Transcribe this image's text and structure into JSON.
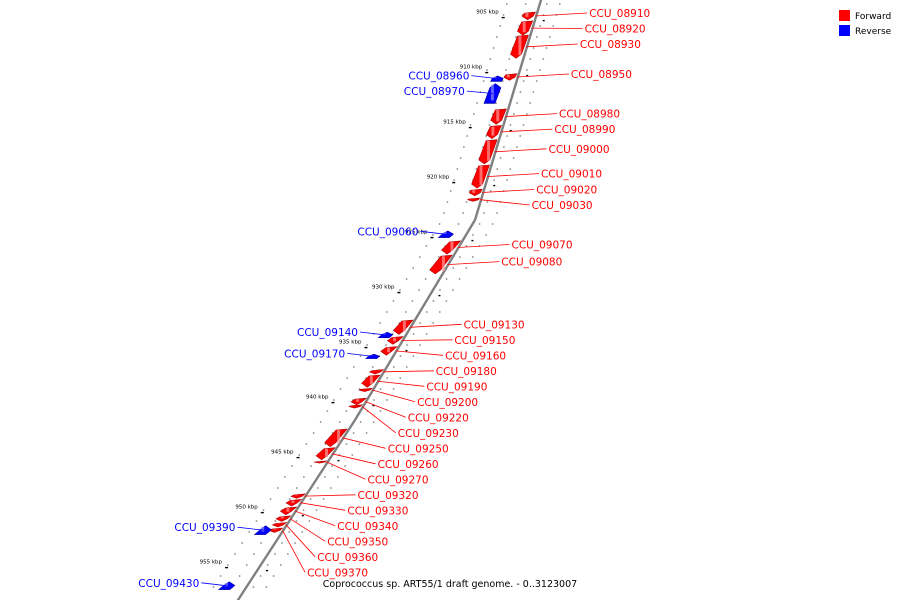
{
  "caption": "Coprococcus sp. ART55/1 draft genome. - 0..3123007",
  "legend": [
    {
      "label": "Forward",
      "color": "#ff0000"
    },
    {
      "label": "Reverse",
      "color": "#0000ff"
    }
  ],
  "colors": {
    "forward": "#ff0000",
    "reverse": "#0000ff",
    "backbone": "#808080"
  },
  "ticks": [
    {
      "label": "905 kbp",
      "kbp": 905
    },
    {
      "label": "910 kbp",
      "kbp": 910
    },
    {
      "label": "915 kbp",
      "kbp": 915
    },
    {
      "label": "920 kbp",
      "kbp": 920
    },
    {
      "label": "925 kbp",
      "kbp": 925
    },
    {
      "label": "930 kbp",
      "kbp": 930
    },
    {
      "label": "935 kbp",
      "kbp": 935
    },
    {
      "label": "940 kbp",
      "kbp": 940
    },
    {
      "label": "945 kbp",
      "kbp": 945
    },
    {
      "label": "950 kbp",
      "kbp": 950
    },
    {
      "label": "955 kbp",
      "kbp": 955
    }
  ],
  "genes": [
    {
      "id": "CCU_08910",
      "strand": "forward",
      "start_kbp": 904.5,
      "end_kbp": 905.2
    },
    {
      "id": "CCU_08920",
      "strand": "forward",
      "start_kbp": 905.3,
      "end_kbp": 906.6
    },
    {
      "id": "CCU_08930",
      "strand": "forward",
      "start_kbp": 906.6,
      "end_kbp": 908.7
    },
    {
      "id": "CCU_08950",
      "strand": "forward",
      "start_kbp": 910.1,
      "end_kbp": 910.7
    },
    {
      "id": "CCU_08960",
      "strand": "reverse",
      "start_kbp": 910.3,
      "end_kbp": 910.8
    },
    {
      "id": "CCU_08970",
      "strand": "reverse",
      "start_kbp": 911.0,
      "end_kbp": 912.8
    },
    {
      "id": "CCU_08980",
      "strand": "forward",
      "start_kbp": 913.3,
      "end_kbp": 914.7
    },
    {
      "id": "CCU_08990",
      "strand": "forward",
      "start_kbp": 914.8,
      "end_kbp": 916.0
    },
    {
      "id": "CCU_09000",
      "strand": "forward",
      "start_kbp": 916.1,
      "end_kbp": 918.3
    },
    {
      "id": "CCU_09010",
      "strand": "forward",
      "start_kbp": 918.4,
      "end_kbp": 920.5
    },
    {
      "id": "CCU_09020",
      "strand": "forward",
      "start_kbp": 920.6,
      "end_kbp": 921.2
    },
    {
      "id": "CCU_09030",
      "strand": "forward",
      "start_kbp": 921.4,
      "end_kbp": 921.7
    },
    {
      "id": "CCU_09060",
      "strand": "reverse",
      "start_kbp": 924.4,
      "end_kbp": 925.0
    },
    {
      "id": "CCU_09070",
      "strand": "forward",
      "start_kbp": 925.3,
      "end_kbp": 926.5
    },
    {
      "id": "CCU_09080",
      "strand": "forward",
      "start_kbp": 926.6,
      "end_kbp": 928.3
    },
    {
      "id": "CCU_09130",
      "strand": "forward",
      "start_kbp": 932.5,
      "end_kbp": 933.8
    },
    {
      "id": "CCU_09140",
      "strand": "reverse",
      "start_kbp": 933.6,
      "end_kbp": 934.1
    },
    {
      "id": "CCU_09150",
      "strand": "forward",
      "start_kbp": 934.0,
      "end_kbp": 934.7
    },
    {
      "id": "CCU_09160",
      "strand": "forward",
      "start_kbp": 934.9,
      "end_kbp": 935.7
    },
    {
      "id": "CCU_09170",
      "strand": "reverse",
      "start_kbp": 935.6,
      "end_kbp": 936.0
    },
    {
      "id": "CCU_09180",
      "strand": "forward",
      "start_kbp": 937.0,
      "end_kbp": 937.4
    },
    {
      "id": "CCU_09190",
      "strand": "forward",
      "start_kbp": 937.5,
      "end_kbp": 938.6
    },
    {
      "id": "CCU_09200",
      "strand": "forward",
      "start_kbp": 938.7,
      "end_kbp": 939.0
    },
    {
      "id": "CCU_09220",
      "strand": "forward",
      "start_kbp": 939.6,
      "end_kbp": 940.2
    },
    {
      "id": "CCU_09230",
      "strand": "forward",
      "start_kbp": 940.2,
      "end_kbp": 940.5
    },
    {
      "id": "CCU_09250",
      "strand": "forward",
      "start_kbp": 942.4,
      "end_kbp": 944.0
    },
    {
      "id": "CCU_09260",
      "strand": "forward",
      "start_kbp": 944.1,
      "end_kbp": 945.2
    },
    {
      "id": "CCU_09270",
      "strand": "forward",
      "start_kbp": 945.3,
      "end_kbp": 945.5
    },
    {
      "id": "CCU_09320",
      "strand": "forward",
      "start_kbp": 948.3,
      "end_kbp": 948.7
    },
    {
      "id": "CCU_09330",
      "strand": "forward",
      "start_kbp": 948.8,
      "end_kbp": 949.4
    },
    {
      "id": "CCU_09340",
      "strand": "forward",
      "start_kbp": 949.5,
      "end_kbp": 950.2
    },
    {
      "id": "CCU_09350",
      "strand": "forward",
      "start_kbp": 950.3,
      "end_kbp": 950.8
    },
    {
      "id": "CCU_09360",
      "strand": "forward",
      "start_kbp": 950.9,
      "end_kbp": 951.3
    },
    {
      "id": "CCU_09370",
      "strand": "forward",
      "start_kbp": 951.4,
      "end_kbp": 951.8
    },
    {
      "id": "CCU_09390",
      "strand": "reverse",
      "start_kbp": 951.2,
      "end_kbp": 952.0
    },
    {
      "id": "CCU_09430",
      "strand": "reverse",
      "start_kbp": 956.3,
      "end_kbp": 957.0
    }
  ]
}
